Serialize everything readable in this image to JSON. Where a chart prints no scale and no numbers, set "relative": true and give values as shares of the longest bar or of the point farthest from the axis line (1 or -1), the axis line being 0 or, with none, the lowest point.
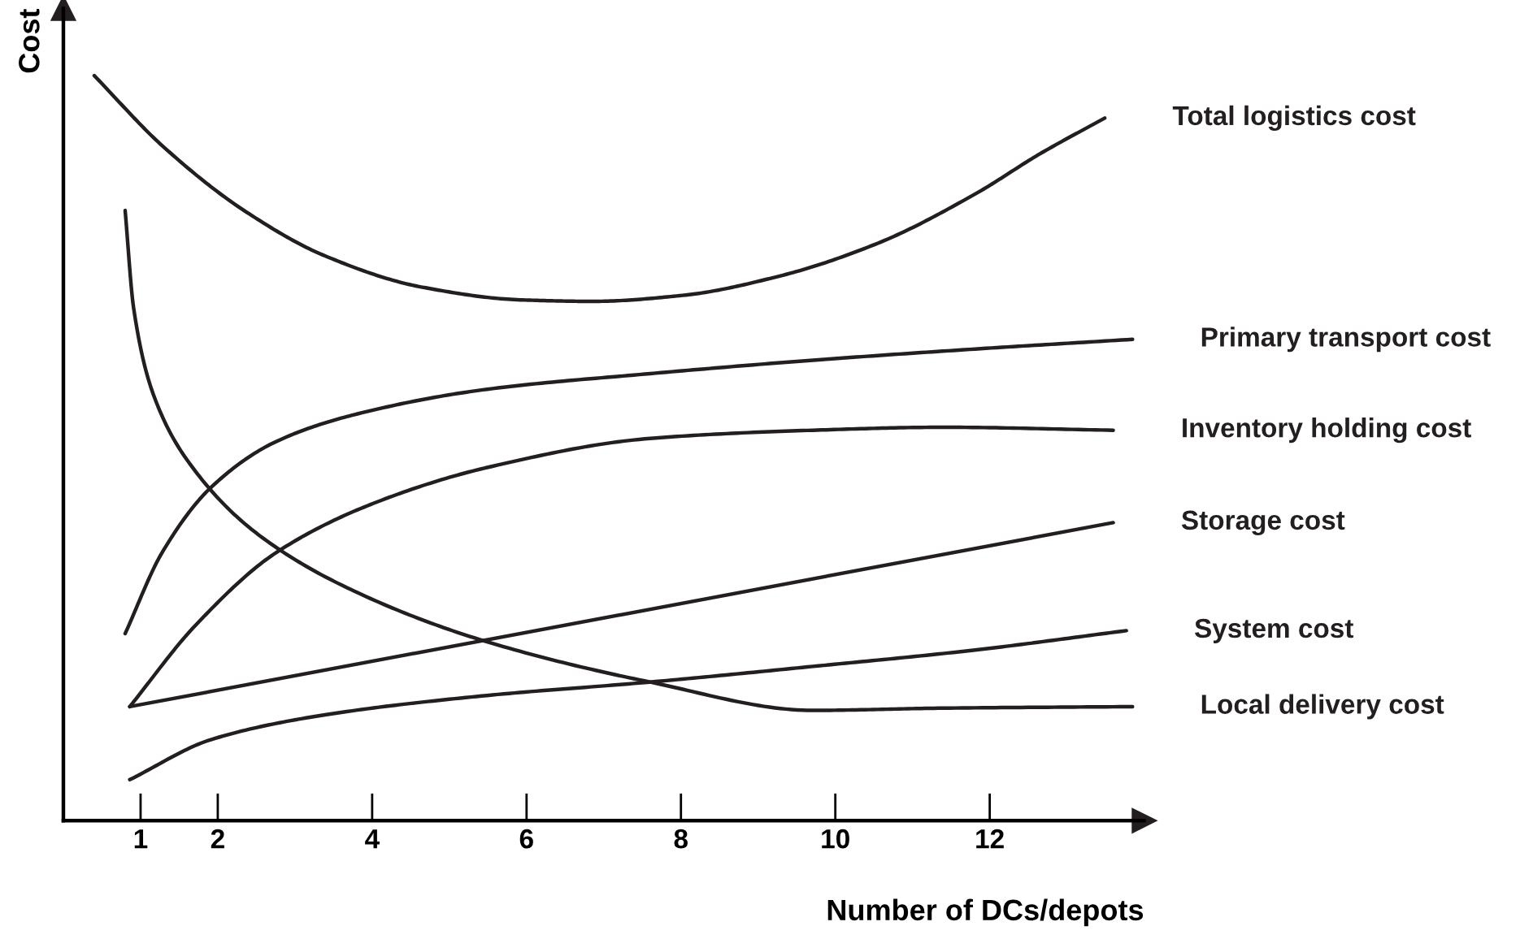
{
  "chart_data": {
    "type": "line",
    "relative": true,
    "xlabel": "Number of DCs/depots",
    "ylabel": "Cost",
    "xlim": [
      0,
      14
    ],
    "xticks": [
      1,
      2,
      4,
      6,
      8,
      10,
      12
    ],
    "tick_labels": "x",
    "grid": false,
    "legend": false,
    "marker": "none",
    "line_style": "solid",
    "series": [
      {
        "name": "Total logistics cost",
        "color": "#231f20",
        "x": [
          0.4,
          1.28,
          2.34,
          3.39,
          4.65,
          5.92,
          6.86,
          8.02,
          9.28,
          10.55,
          11.81,
          12.65,
          13.49
        ],
        "values": [
          1.0,
          0.906,
          0.819,
          0.758,
          0.716,
          0.699,
          0.697,
          0.705,
          0.731,
          0.775,
          0.841,
          0.895,
          0.943
        ]
      },
      {
        "name": "Primary transport cost",
        "color": "#231f20",
        "x": [
          0.8,
          1.28,
          1.92,
          2.76,
          3.81,
          5.49,
          7.6,
          9.71,
          11.81,
          13.85
        ],
        "values": [
          0.251,
          0.36,
          0.448,
          0.509,
          0.546,
          0.579,
          0.6,
          0.618,
          0.633,
          0.646
        ]
      },
      {
        "name": "Inventory holding cost",
        "color": "#231f20",
        "x": [
          0.86,
          1.71,
          2.76,
          4.02,
          5.49,
          7.6,
          9.71,
          11.39,
          13.6
        ],
        "values": [
          0.153,
          0.262,
          0.36,
          0.426,
          0.474,
          0.513,
          0.524,
          0.528,
          0.524
        ]
      },
      {
        "name": "Storage cost",
        "color": "#231f20",
        "x": [
          0.86,
          13.6
        ],
        "values": [
          0.153,
          0.4
        ]
      },
      {
        "name": "System cost",
        "color": "#231f20",
        "x": [
          0.86,
          1.92,
          3.39,
          5.49,
          7.6,
          9.71,
          11.81,
          13.77
        ],
        "values": [
          0.055,
          0.109,
          0.142,
          0.168,
          0.186,
          0.207,
          0.229,
          0.255
        ]
      },
      {
        "name": "Local delivery cost",
        "color": "#231f20",
        "x": [
          0.8,
          0.91,
          1.18,
          1.71,
          2.55,
          3.81,
          5.49,
          7.6,
          9.71,
          11.39,
          13.85
        ],
        "values": [
          0.819,
          0.688,
          0.568,
          0.469,
          0.382,
          0.306,
          0.24,
          0.186,
          0.148,
          0.151,
          0.153
        ]
      }
    ]
  }
}
